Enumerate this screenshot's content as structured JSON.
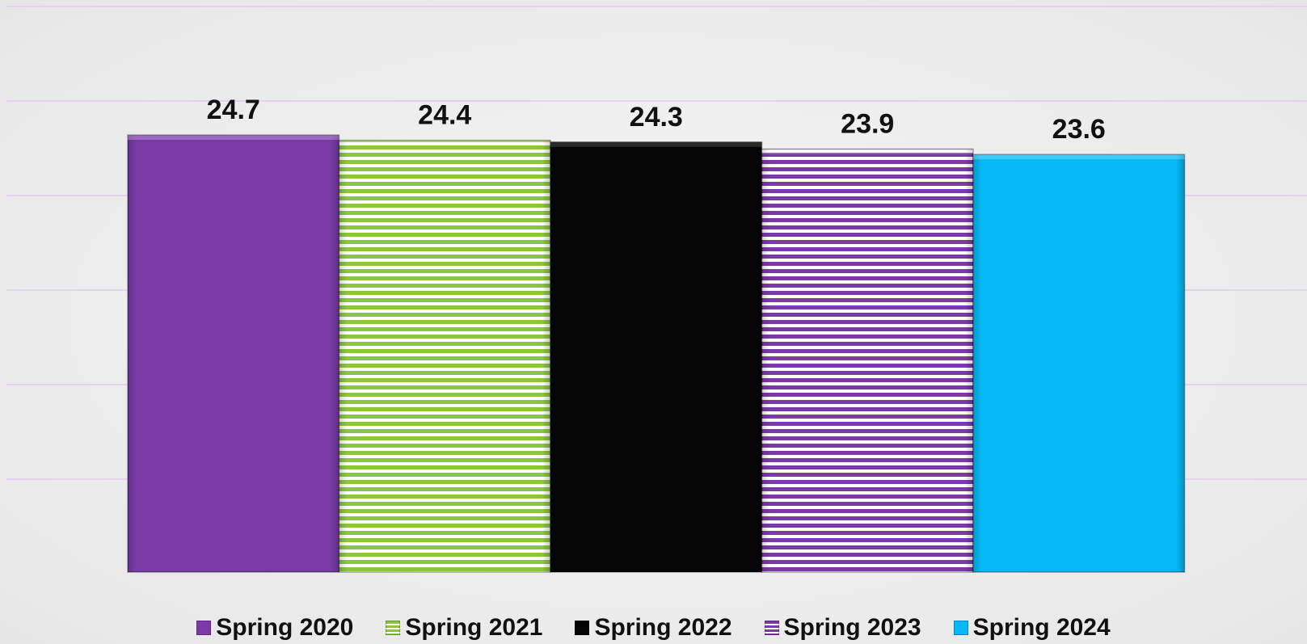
{
  "chart_data": {
    "type": "bar",
    "categories": [
      "Spring 2020",
      "Spring 2021",
      "Spring 2022",
      "Spring 2023",
      "Spring 2024"
    ],
    "values": [
      24.7,
      24.4,
      24.3,
      23.9,
      23.6
    ],
    "value_labels": [
      "24.7",
      "24.4",
      "24.3",
      "23.9",
      "23.6"
    ],
    "title": "",
    "xlabel": "",
    "ylabel": "",
    "ylim": [
      0,
      30
    ],
    "grid": true,
    "legend_placement": "bottom",
    "legend": [
      "Spring 2020",
      "Spring 2021",
      "Spring 2022",
      "Spring 2023",
      "Spring 2024"
    ],
    "styles": [
      {
        "color": "#7b3aa8",
        "pattern": "solid"
      },
      {
        "color": "#8cc63f",
        "pattern": "horizontal-stripes"
      },
      {
        "color": "#050505",
        "pattern": "solid"
      },
      {
        "color": "#7b3aa8",
        "pattern": "horizontal-stripes"
      },
      {
        "color": "#06b9f6",
        "pattern": "solid"
      }
    ],
    "gridline_color": "#e3d3ef"
  }
}
